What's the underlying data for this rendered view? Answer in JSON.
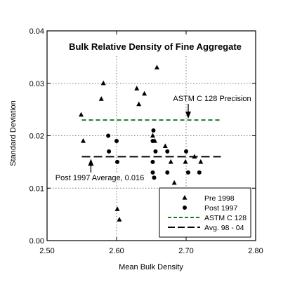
{
  "chart_data": {
    "type": "scatter",
    "title": "Bulk Relative Density of Fine Aggregate",
    "xlabel": "Mean Bulk Density",
    "ylabel": "Standard Deviation",
    "xlim": [
      2.5,
      2.8
    ],
    "ylim": [
      0.0,
      0.04
    ],
    "x_ticks": [
      2.5,
      2.6,
      2.7,
      2.8
    ],
    "x_tick_labels": [
      "2.50",
      "2.60",
      "2.70",
      "2.80"
    ],
    "y_ticks": [
      0.0,
      0.01,
      0.02,
      0.03,
      0.04
    ],
    "y_tick_labels": [
      "0.00",
      "0.01",
      "0.02",
      "0.03",
      "0.04"
    ],
    "grid": true,
    "legend_position": "bottom-right",
    "series": [
      {
        "name": "Pre 1998",
        "marker": "triangle",
        "points": [
          [
            2.549,
            0.024
          ],
          [
            2.552,
            0.019
          ],
          [
            2.578,
            0.027
          ],
          [
            2.581,
            0.03
          ],
          [
            2.601,
            0.006
          ],
          [
            2.604,
            0.004
          ],
          [
            2.629,
            0.029
          ],
          [
            2.632,
            0.026
          ],
          [
            2.64,
            0.028
          ],
          [
            2.658,
            0.033
          ],
          [
            2.652,
            0.02
          ],
          [
            2.655,
            0.019
          ],
          [
            2.67,
            0.018
          ],
          [
            2.683,
            0.011
          ],
          [
            2.678,
            0.015
          ],
          [
            2.699,
            0.015
          ],
          [
            2.712,
            0.016
          ],
          [
            2.721,
            0.015
          ]
        ]
      },
      {
        "name": "Post 1997",
        "marker": "circle",
        "points": [
          [
            2.588,
            0.02
          ],
          [
            2.589,
            0.017
          ],
          [
            2.6,
            0.019
          ],
          [
            2.601,
            0.015
          ],
          [
            2.653,
            0.021
          ],
          [
            2.652,
            0.019
          ],
          [
            2.656,
            0.017
          ],
          [
            2.652,
            0.015
          ],
          [
            2.652,
            0.013
          ],
          [
            2.654,
            0.012
          ],
          [
            2.673,
            0.017
          ],
          [
            2.673,
            0.013
          ],
          [
            2.7,
            0.017
          ],
          [
            2.703,
            0.013
          ],
          [
            2.719,
            0.013
          ]
        ]
      }
    ],
    "reference_lines": [
      {
        "name": "ASTM C 128",
        "y": 0.023,
        "x_range": [
          2.55,
          2.75
        ],
        "style": "dashed",
        "color": "#1a7a2a"
      },
      {
        "name": "Avg. 98 - 04",
        "y": 0.016,
        "x_range": [
          2.55,
          2.75
        ],
        "style": "longdash",
        "color": "#000000"
      }
    ],
    "vertical_guides": [
      2.6,
      2.7
    ],
    "annotations": [
      {
        "text": "ASTM C 128 Precision",
        "arrow_target": [
          2.7,
          0.023
        ]
      },
      {
        "text": "Post 1997 Average, 0.016",
        "arrow_target": [
          2.56,
          0.016
        ]
      }
    ]
  },
  "colors": {
    "astm": "#1a7a2a",
    "avg": "#000000",
    "grid": "#777777"
  }
}
